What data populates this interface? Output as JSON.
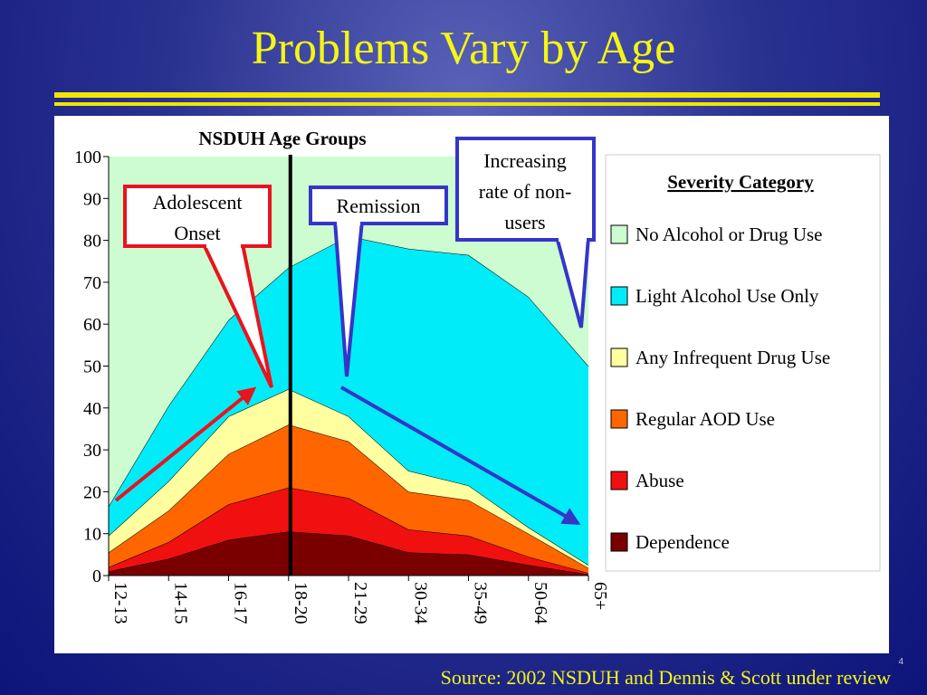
{
  "title": "Problems Vary by Age",
  "source": "Source: 2002 NSDUH and Dennis & Scott under review",
  "page_number": "4",
  "colors": {
    "title": "#f5f516",
    "rule": "#f2e600",
    "divider": "#000000",
    "adolescent_arrow": "#e8141e",
    "remission_arrow": "#3535c8",
    "nonusers_arrow": "#3535c8"
  },
  "annotations": {
    "adolescent_onset": [
      "Adolescent",
      "Onset"
    ],
    "remission": "Remission",
    "nonusers": [
      "Increasing",
      "rate of non-",
      "users"
    ]
  },
  "chart_data": {
    "type": "area",
    "stacked": true,
    "title": "NSDUH Age Groups",
    "categories": [
      "12-13",
      "14-15",
      "16-17",
      "18-20",
      "21-29",
      "30-34",
      "35-49",
      "50-64",
      "65+"
    ],
    "ylim": [
      0,
      100
    ],
    "yticks": [
      "0",
      "10",
      "20",
      "30",
      "40",
      "50",
      "60",
      "70",
      "80",
      "90",
      "100"
    ],
    "legend_title": "Severity Category",
    "legend_position": "right",
    "series": [
      {
        "name": "Dependence",
        "color": "#7a0000",
        "values": [
          1,
          4,
          8.5,
          10.5,
          9.5,
          5.5,
          5,
          2.5,
          0.3
        ]
      },
      {
        "name": "Abuse",
        "color": "#f01010",
        "values": [
          1,
          4,
          8.5,
          10.5,
          9,
          5.5,
          4.5,
          2,
          0.3
        ]
      },
      {
        "name": "Regular AOD Use",
        "color": "#ff6600",
        "values": [
          3.5,
          7.5,
          12,
          15,
          13.5,
          9,
          8.5,
          5.5,
          1.2
        ]
      },
      {
        "name": "Any Infrequent Drug Use",
        "color": "#ffffa0",
        "values": [
          4,
          7,
          9,
          8.5,
          6,
          5,
          3.5,
          1.5,
          0.7
        ]
      },
      {
        "name": "Light Alcohol Use Only",
        "color": "#00ecf8",
        "values": [
          7,
          18,
          23,
          29,
          43,
          53,
          55,
          55,
          47.5
        ]
      },
      {
        "name": "No Alcohol or Drug Use",
        "color": "#ccfcd0",
        "values": [
          83.5,
          59.5,
          39,
          26.5,
          19,
          22,
          23.5,
          33.5,
          50
        ]
      }
    ],
    "legend_order": [
      "No Alcohol or Drug Use",
      "Light Alcohol Use Only",
      "Any Infrequent Drug Use",
      "Regular AOD Use",
      "Abuse",
      "Dependence"
    ],
    "divider_after_category": "18-20"
  }
}
